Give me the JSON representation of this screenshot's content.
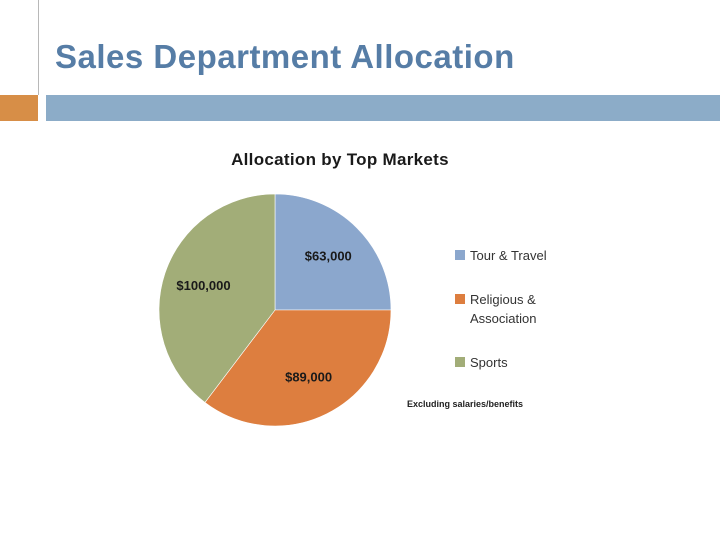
{
  "slide": {
    "title": "Sales Department Allocation"
  },
  "theme": {
    "title_color": "#567da6",
    "accent_orange": "#d78e47",
    "banner_blue": "#8cacc8"
  },
  "chart_data": {
    "type": "pie",
    "title": "Allocation by Top Markets",
    "labels": [
      "Tour & Travel",
      "Religious & Association",
      "Sports"
    ],
    "values": [
      63000,
      89000,
      100000
    ],
    "data_labels": [
      "$63,000",
      "$89,000",
      "$100,000"
    ],
    "colors": [
      "#8ba7cd",
      "#dd7e3f",
      "#a2ad78"
    ],
    "start_angle_deg": 0,
    "direction": "clockwise",
    "legend_position": "right",
    "footnote": "Excluding salaries/benefits"
  }
}
